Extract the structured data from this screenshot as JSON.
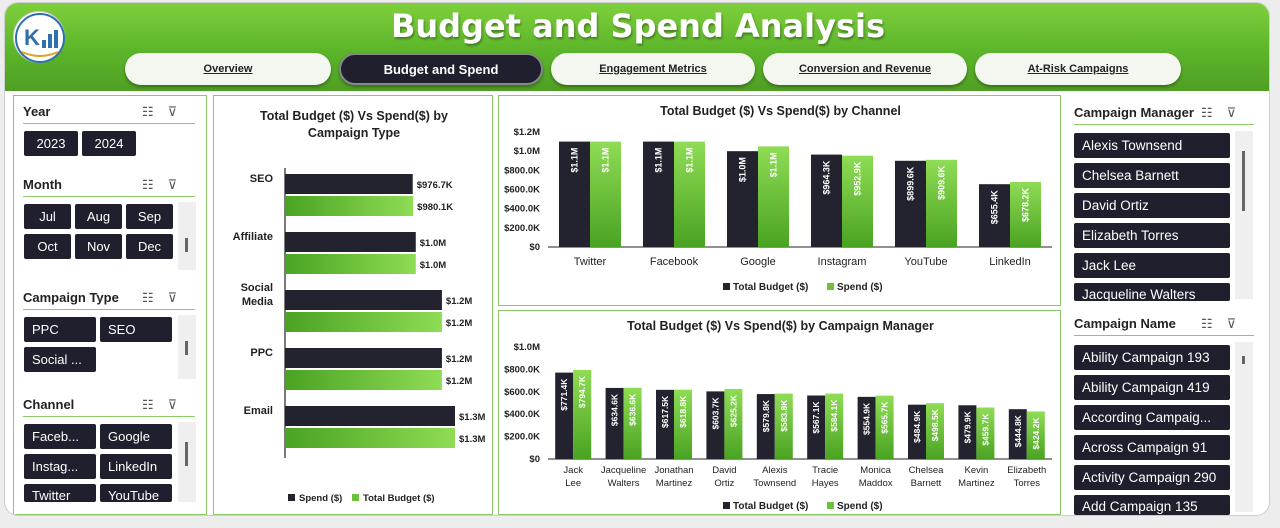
{
  "app": {
    "title": "Budget and Spend Analysis"
  },
  "nav": {
    "tabs": [
      {
        "label": "Overview",
        "active": false
      },
      {
        "label": "Budget and Spend",
        "active": true
      },
      {
        "label": "Engagement Metrics",
        "active": false
      },
      {
        "label": "Conversion and Revenue",
        "active": false
      },
      {
        "label": "At-Risk Campaigns",
        "active": false
      }
    ]
  },
  "filters": {
    "year": {
      "title": "Year",
      "items": [
        "2023",
        "2024"
      ]
    },
    "month": {
      "title": "Month",
      "items": [
        "Jul",
        "Aug",
        "Sep",
        "Oct",
        "Nov",
        "Dec"
      ]
    },
    "campaign_type": {
      "title": "Campaign Type",
      "items": [
        "PPC",
        "SEO",
        "Social ..."
      ]
    },
    "channel": {
      "title": "Channel",
      "items": [
        "Faceb...",
        "Google",
        "Instag...",
        "LinkedIn",
        "Twitter",
        "YouTube"
      ]
    },
    "campaign_manager": {
      "title": "Campaign Manager",
      "items": [
        "Alexis Townsend",
        "Chelsea Barnett",
        "David Ortiz",
        "Elizabeth Torres",
        "Jack Lee",
        "Jacqueline Walters"
      ]
    },
    "campaign_name": {
      "title": "Campaign Name",
      "items": [
        "Ability Campaign 193",
        "Ability Campaign 419",
        "According Campaig...",
        "Across Campaign 91",
        "Activity Campaign 290",
        "Add Campaign 135"
      ]
    }
  },
  "colors": {
    "budget": "#23232f",
    "spend": "#6cc33a",
    "accent": "#5cb52a",
    "chip": "#1f1f2e"
  },
  "chart_data": [
    {
      "type": "bar",
      "orientation": "horizontal",
      "title": "Total Budget ($) Vs Spend($) by Campaign Type",
      "categories": [
        "SEO",
        "Affiliate",
        "Social Media",
        "PPC",
        "Email"
      ],
      "series": [
        {
          "name": "Spend ($)",
          "values": [
            976.7,
            1000,
            1200,
            1200,
            1300
          ],
          "labels": [
            "$976.7K",
            "$1.0M",
            "$1.2M",
            "$1.2M",
            "$1.3M"
          ]
        },
        {
          "name": "Total Budget ($)",
          "values": [
            980.1,
            1000,
            1200,
            1200,
            1300
          ],
          "labels": [
            "$980.1K",
            "$1.0M",
            "$1.2M",
            "$1.2M",
            "$1.3M"
          ]
        }
      ],
      "legend": "bottom"
    },
    {
      "type": "bar",
      "title": "Total Budget ($) Vs Spend($) by Channel",
      "categories": [
        "Twitter",
        "Facebook",
        "Google",
        "Instagram",
        "YouTube",
        "LinkedIn"
      ],
      "series": [
        {
          "name": "Total Budget ($)",
          "values": [
            1100,
            1100,
            1000,
            964.3,
            899.6,
            655.4
          ],
          "labels": [
            "$1.1M",
            "$1.1M",
            "$1.0M",
            "$964.3K",
            "$899.6K",
            "$655.4K"
          ]
        },
        {
          "name": "Spend ($)",
          "values": [
            1100,
            1100,
            1050,
            952.9,
            909.6,
            678.2
          ],
          "labels": [
            "$1.1M",
            "$1.1M",
            "$1.1M",
            "$952.9K",
            "$909.6K",
            "$678.2K"
          ]
        }
      ],
      "yticks": [
        "$0",
        "$200.0K",
        "$400.0K",
        "$600.0K",
        "$800.0K",
        "$1.0M",
        "$1.2M"
      ],
      "ylim": [
        0,
        1200
      ],
      "legend": "bottom"
    },
    {
      "type": "bar",
      "title": "Total Budget ($) Vs Spend($) by Campaign Manager",
      "categories": [
        "Jack Lee",
        "Jacqueline Walters",
        "Jonathan Martinez",
        "David Ortiz",
        "Alexis Townsend",
        "Tracie Hayes",
        "Monica Maddox",
        "Chelsea Barnett",
        "Kevin Martinez",
        "Elizabeth Torres"
      ],
      "series": [
        {
          "name": "Total Budget ($)",
          "values": [
            771.4,
            634.6,
            617.5,
            603.7,
            579.8,
            567.1,
            554.9,
            484.9,
            479.9,
            444.8
          ],
          "labels": [
            "$771.4K",
            "$634.6K",
            "$617.5K",
            "$603.7K",
            "$579.8K",
            "$567.1K",
            "$554.9K",
            "$484.9K",
            "$479.9K",
            "$444.8K"
          ]
        },
        {
          "name": "Spend ($)",
          "values": [
            794.7,
            636.6,
            618.8,
            625.2,
            583.8,
            584.1,
            565.7,
            498.5,
            459.7,
            424.2
          ],
          "labels": [
            "$794.7K",
            "$636.6K",
            "$618.8K",
            "$625.2K",
            "$583.8K",
            "$584.1K",
            "$565.7K",
            "$498.5K",
            "$459.7K",
            "$424.2K"
          ]
        }
      ],
      "yticks": [
        "$0",
        "$200.0K",
        "$400.0K",
        "$600.0K",
        "$800.0K",
        "$1.0M"
      ],
      "ylim": [
        0,
        1000
      ],
      "legend": "bottom"
    }
  ]
}
